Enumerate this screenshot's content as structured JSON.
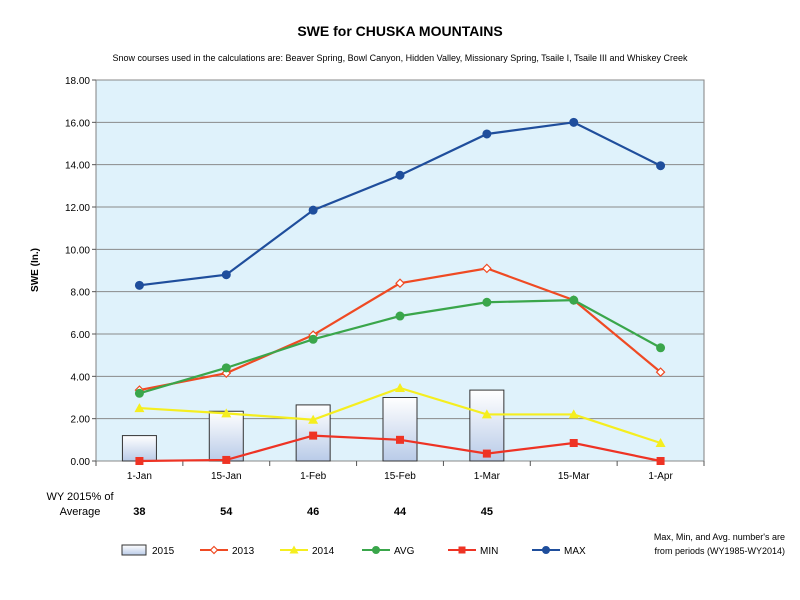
{
  "chart_data": {
    "type": "line",
    "title": "SWE for CHUSKA MOUNTAINS",
    "subtitle": "Snow courses used in the calculations are: Beaver Spring, Bowl Canyon, Hidden Valley, Missionary Spring, Tsaile I, Tsaile III and Whiskey Creek",
    "xlabel": "",
    "ylabel": "SWE (In.)",
    "ylim": [
      0,
      18
    ],
    "yticks": [
      "0.00",
      "2.00",
      "4.00",
      "6.00",
      "8.00",
      "10.00",
      "12.00",
      "14.00",
      "16.00",
      "18.00"
    ],
    "categories": [
      "1-Jan",
      "15-Jan",
      "1-Feb",
      "15-Feb",
      "1-Mar",
      "15-Mar",
      "1-Apr"
    ],
    "grid": true,
    "legend_position": "bottom",
    "plot_background": "#dff2fb",
    "series": [
      {
        "name": "2015",
        "kind": "bar",
        "color": "#1f3f7a",
        "fill": "#c9d7ee",
        "marker": "square",
        "values": [
          1.2,
          2.35,
          2.65,
          3.0,
          3.35,
          null,
          null
        ]
      },
      {
        "name": "2013",
        "kind": "line",
        "color": "#ef4a23",
        "marker": "diamond",
        "values": [
          3.35,
          4.15,
          5.95,
          8.4,
          9.1,
          7.6,
          4.2
        ]
      },
      {
        "name": "2014",
        "kind": "line",
        "color": "#f5ee1f",
        "marker": "triangle",
        "values": [
          2.5,
          2.25,
          1.95,
          3.45,
          2.2,
          2.2,
          0.85
        ]
      },
      {
        "name": "AVG",
        "kind": "line",
        "color": "#3aa64b",
        "marker": "circle",
        "values": [
          3.2,
          4.4,
          5.75,
          6.85,
          7.5,
          7.6,
          5.35
        ]
      },
      {
        "name": "MIN",
        "kind": "line",
        "color": "#ee3324",
        "marker": "square",
        "values": [
          0.0,
          0.05,
          1.2,
          1.0,
          0.35,
          0.85,
          0.0
        ]
      },
      {
        "name": "MAX",
        "kind": "line",
        "color": "#1f4e9c",
        "marker": "circle",
        "values": [
          8.3,
          8.8,
          11.85,
          13.5,
          15.45,
          16.0,
          13.95
        ]
      }
    ],
    "pct_of_average": {
      "label_line1": "WY 2015% of",
      "label_line2": "Average",
      "values": [
        "38",
        "54",
        "46",
        "44",
        "45",
        "",
        ""
      ]
    },
    "note_line1": "Max, Min, and Avg. number's are",
    "note_line2": "from periods (WY1985-WY2014)"
  }
}
